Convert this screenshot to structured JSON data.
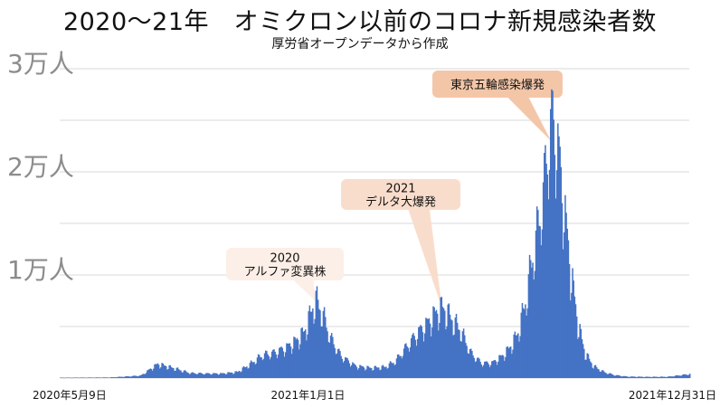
{
  "chart_data": {
    "type": "area",
    "title": "2020～21年　オミクロン以前のコロナ新規感染者数",
    "subtitle": "厚労省オープンデータから作成",
    "xlabel": "",
    "ylabel": "",
    "x_tick_labels": [
      {
        "date": "2020-05-09",
        "label": "2020年5月9日"
      },
      {
        "date": "2021-01-01",
        "label": "2021年1月1日"
      },
      {
        "date": "2021-12-31",
        "label": "2021年12月31日"
      }
    ],
    "y_tick_labels": [
      {
        "value": 10000,
        "label": "1万人"
      },
      {
        "value": 20000,
        "label": "2万人"
      },
      {
        "value": 30000,
        "label": "3万人"
      }
    ],
    "ylim": [
      0,
      30000
    ],
    "xlim": [
      "2020-05-09",
      "2021-12-31"
    ],
    "grid": true,
    "color": "#4472c4",
    "x": [
      "2020-05-09",
      "2020-06-05",
      "2020-06-25",
      "2020-07-10",
      "2020-07-25",
      "2020-08-03",
      "2020-08-10",
      "2020-08-25",
      "2020-09-10",
      "2020-09-25",
      "2020-10-10",
      "2020-10-25",
      "2020-11-05",
      "2020-11-18",
      "2020-11-28",
      "2020-12-10",
      "2020-12-20",
      "2020-12-28",
      "2021-01-05",
      "2021-01-08",
      "2021-01-14",
      "2021-01-22",
      "2021-02-01",
      "2021-02-15",
      "2021-03-01",
      "2021-03-15",
      "2021-03-25",
      "2021-04-05",
      "2021-04-15",
      "2021-04-25",
      "2021-05-01",
      "2021-05-08",
      "2021-05-12",
      "2021-05-18",
      "2021-05-26",
      "2021-06-05",
      "2021-06-15",
      "2021-06-25",
      "2021-07-05",
      "2021-07-12",
      "2021-07-20",
      "2021-07-27",
      "2021-08-02",
      "2021-08-08",
      "2021-08-13",
      "2021-08-18",
      "2021-08-21",
      "2021-08-26",
      "2021-09-01",
      "2021-09-08",
      "2021-09-15",
      "2021-09-22",
      "2021-09-30",
      "2021-10-10",
      "2021-10-20",
      "2021-11-01",
      "2021-11-20",
      "2021-12-10",
      "2021-12-31"
    ],
    "values": [
      40,
      50,
      60,
      150,
      250,
      900,
      1400,
      1000,
      500,
      450,
      450,
      600,
      1300,
      2300,
      2500,
      3000,
      3700,
      4600,
      7000,
      7800,
      6500,
      4000,
      2200,
      1200,
      1000,
      1100,
      1700,
      3200,
      4500,
      5500,
      6300,
      7000,
      6700,
      5800,
      4800,
      2500,
      1500,
      1500,
      2200,
      3000,
      4500,
      7500,
      11500,
      15000,
      18500,
      23500,
      25800,
      24000,
      18000,
      11000,
      5500,
      2500,
      1200,
      600,
      300,
      150,
      120,
      130,
      400
    ],
    "annotations": [
      {
        "text": "2020\nアルファ変異株",
        "date": "2021-01-08",
        "value": 7500,
        "tone": "light"
      },
      {
        "text": "2021\nデルタ大爆発",
        "date": "2021-05-09",
        "value": 6800,
        "tone": "mid"
      },
      {
        "text": "東京五輪感染爆発",
        "date": "2021-08-21",
        "value": 23000,
        "tone": "dark"
      }
    ],
    "annotation_colors": {
      "light": "#fcefe7",
      "mid": "#f9ddcc",
      "dark": "#f4c6a8"
    }
  }
}
